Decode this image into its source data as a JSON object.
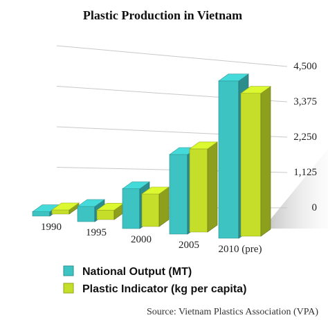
{
  "chart_data": {
    "type": "bar",
    "title": "Plastic Production in Vietnam",
    "categories": [
      "1990",
      "1995",
      "2000",
      "2005",
      "2010 (pre)"
    ],
    "series": [
      {
        "name": "National Output (MT)",
        "values": [
          120,
          420,
          1100,
          2200,
          4350
        ],
        "color": "#3ec3c3"
      },
      {
        "name": "Plastic Indicator (kg per capita)",
        "values": [
          80,
          260,
          900,
          2300,
          3950
        ],
        "color": "#c4de2a"
      }
    ],
    "yticks": [
      "0",
      "1,125",
      "2,250",
      "3,375",
      "4,500"
    ],
    "ylim": [
      0,
      4500
    ],
    "xlabel": "",
    "ylabel": "",
    "legend_position": "bottom",
    "source": "Source: Vietnam Plastics Association (VPA)"
  }
}
